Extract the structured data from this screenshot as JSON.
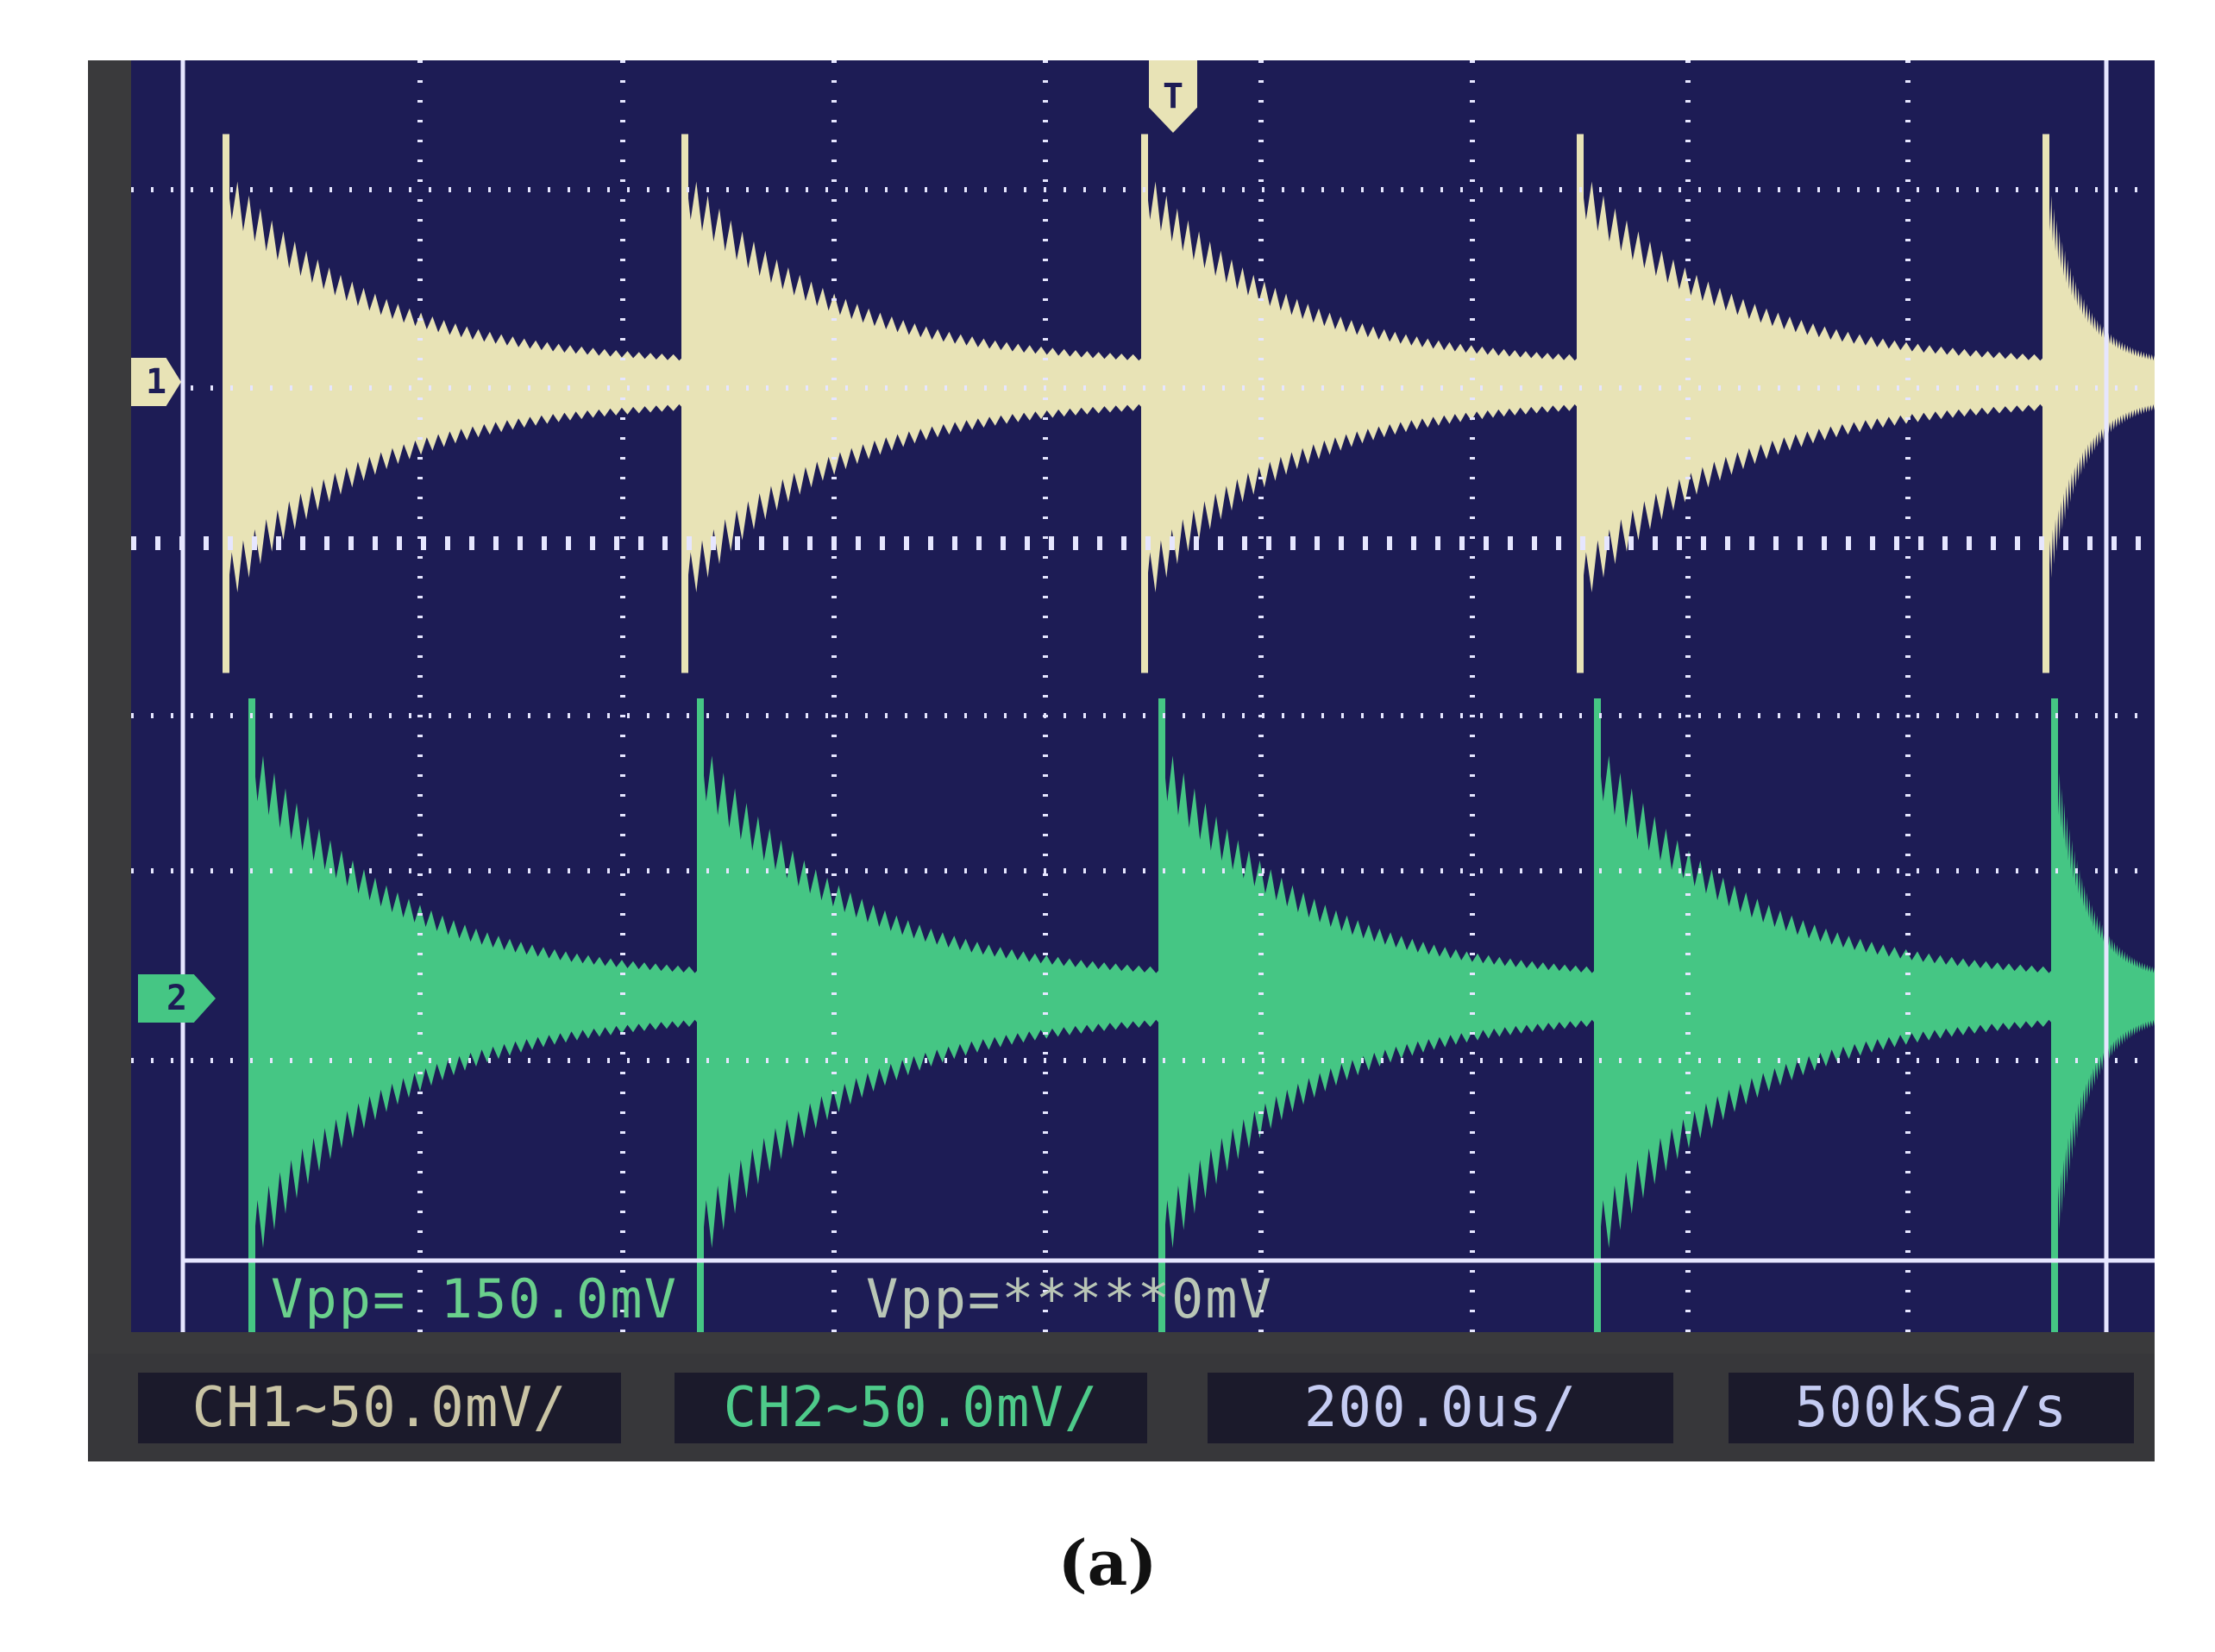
{
  "scope": {
    "ch1_marker": "1",
    "ch2_marker": "2",
    "trigger_marker": "T",
    "vpp_ch1": "Vpp= 150.0mV",
    "vpp_ch2": "Vpp=*****0mV",
    "status": {
      "ch1": "CH1~50.0mV/",
      "ch2": "CH2~50.0mV/",
      "timebase": "200.0us/",
      "sample_rate": "500kSa/s"
    },
    "colors": {
      "screen": "#1d1c55",
      "grid": "#e6e6ff",
      "ch1": "#e8e3b6",
      "ch2": "#45c684",
      "readout": "#6ad08c"
    }
  },
  "caption": "(a)"
}
